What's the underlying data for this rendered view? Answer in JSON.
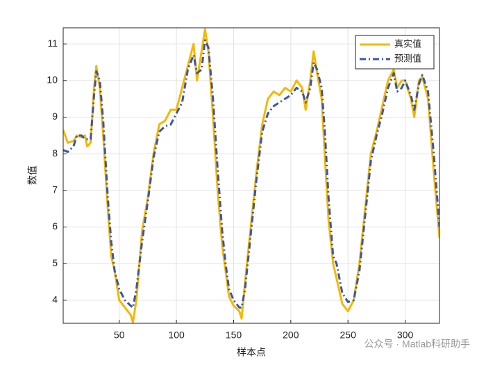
{
  "chart_data": {
    "type": "line",
    "x_label": "样本点",
    "y_label": "数值",
    "watermark": "公众号 · Matlab科研助手",
    "x": [
      1,
      5,
      10,
      13,
      17,
      20,
      22,
      25,
      28,
      30,
      33,
      36,
      40,
      43,
      46,
      50,
      55,
      60,
      62,
      65,
      70,
      75,
      80,
      85,
      90,
      95,
      100,
      105,
      110,
      115,
      118,
      122,
      125,
      128,
      132,
      136,
      140,
      143,
      146,
      150,
      155,
      157,
      160,
      165,
      170,
      175,
      180,
      185,
      190,
      195,
      200,
      205,
      210,
      213,
      217,
      220,
      223,
      227,
      230,
      233,
      237,
      240,
      245,
      250,
      255,
      260,
      265,
      270,
      275,
      280,
      285,
      290,
      293,
      297,
      300,
      305,
      308,
      312,
      315,
      320,
      325,
      330
    ],
    "series": [
      {
        "name": "真实值",
        "color": "#f5b800",
        "dash": "solid",
        "values": [
          8.65,
          8.3,
          8.35,
          8.5,
          8.45,
          8.5,
          8.2,
          8.3,
          9.8,
          10.4,
          9.8,
          8.5,
          6.5,
          5.2,
          4.8,
          4.0,
          3.8,
          3.6,
          3.4,
          4.0,
          5.9,
          6.8,
          8.0,
          8.8,
          8.9,
          9.2,
          9.2,
          9.8,
          10.4,
          11.0,
          10.0,
          10.8,
          11.4,
          10.8,
          9.0,
          7.0,
          5.5,
          4.8,
          4.1,
          3.85,
          3.7,
          3.5,
          4.5,
          6.0,
          7.5,
          8.8,
          9.5,
          9.7,
          9.6,
          9.8,
          9.7,
          10.0,
          9.8,
          9.2,
          10.0,
          10.8,
          10.2,
          9.5,
          7.8,
          6.2,
          5.0,
          4.6,
          3.9,
          3.7,
          4.0,
          5.0,
          6.5,
          8.0,
          8.6,
          9.3,
          10.0,
          10.3,
          9.8,
          10.0,
          10.0,
          9.5,
          9.0,
          10.0,
          10.1,
          9.5,
          7.5,
          5.7
        ]
      },
      {
        "name": "预测值",
        "color": "#3a56a6",
        "dash": "dashdot",
        "values": [
          8.1,
          8.05,
          8.2,
          8.5,
          8.5,
          8.4,
          8.4,
          8.4,
          9.6,
          10.25,
          10.0,
          8.9,
          6.8,
          5.6,
          4.8,
          4.3,
          4.0,
          3.85,
          3.8,
          4.3,
          5.6,
          6.7,
          7.9,
          8.6,
          8.75,
          8.8,
          9.1,
          9.4,
          10.3,
          10.7,
          10.2,
          10.3,
          11.1,
          10.9,
          9.5,
          7.6,
          5.9,
          5.0,
          4.3,
          4.0,
          3.8,
          3.8,
          4.3,
          5.8,
          7.3,
          8.6,
          9.1,
          9.3,
          9.4,
          9.5,
          9.6,
          9.8,
          9.7,
          9.4,
          9.8,
          10.5,
          10.3,
          9.8,
          8.5,
          6.8,
          5.2,
          5.0,
          4.2,
          3.95,
          4.0,
          4.8,
          6.3,
          7.8,
          8.5,
          9.1,
          9.8,
          10.2,
          9.7,
          9.8,
          10.0,
          9.6,
          9.2,
          9.9,
          10.15,
          9.7,
          8.0,
          6.0
        ]
      }
    ],
    "xlim": [
      1,
      330
    ],
    "ylim": [
      3.37,
      11.44
    ],
    "xticks": [
      50,
      100,
      150,
      200,
      250,
      300
    ],
    "yticks": [
      4,
      5,
      6,
      7,
      8,
      9,
      10,
      11
    ],
    "grid": true,
    "legend": "top-right"
  }
}
